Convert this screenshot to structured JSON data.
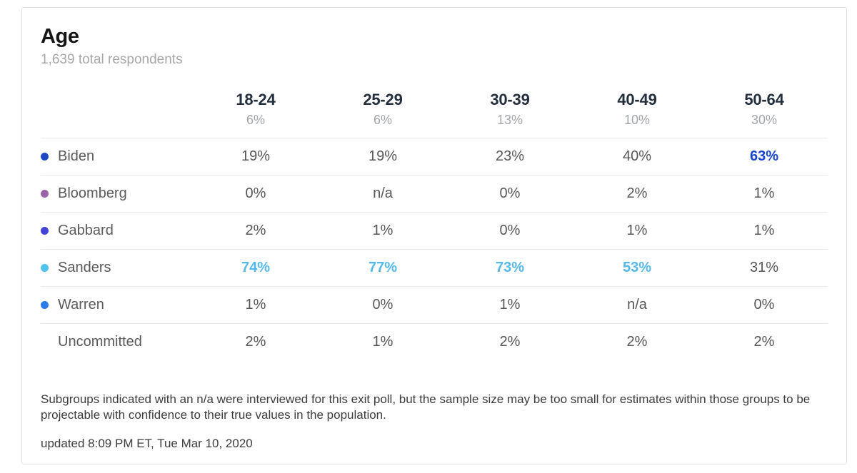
{
  "header": {
    "title": "Age",
    "subtitle": "1,639 total respondents"
  },
  "table": {
    "columns": [
      {
        "label": "18-24",
        "share": "6%"
      },
      {
        "label": "25-29",
        "share": "6%"
      },
      {
        "label": "30-39",
        "share": "13%"
      },
      {
        "label": "40-49",
        "share": "10%"
      },
      {
        "label": "50-64",
        "share": "30%"
      }
    ],
    "rows": [
      {
        "candidate": "Biden",
        "dot_color": "#1b49c6",
        "values": [
          {
            "text": "19%",
            "highlight": false
          },
          {
            "text": "19%",
            "highlight": false
          },
          {
            "text": "23%",
            "highlight": false
          },
          {
            "text": "40%",
            "highlight": false
          },
          {
            "text": "63%",
            "highlight": true
          }
        ]
      },
      {
        "candidate": "Bloomberg",
        "dot_color": "#9a62a8",
        "values": [
          {
            "text": "0%",
            "highlight": false
          },
          {
            "text": "n/a",
            "highlight": false
          },
          {
            "text": "0%",
            "highlight": false
          },
          {
            "text": "2%",
            "highlight": false
          },
          {
            "text": "1%",
            "highlight": false
          }
        ]
      },
      {
        "candidate": "Gabbard",
        "dot_color": "#4342d9",
        "values": [
          {
            "text": "2%",
            "highlight": false
          },
          {
            "text": "1%",
            "highlight": false
          },
          {
            "text": "0%",
            "highlight": false
          },
          {
            "text": "1%",
            "highlight": false
          },
          {
            "text": "1%",
            "highlight": false
          }
        ]
      },
      {
        "candidate": "Sanders",
        "dot_color": "#4fc2ee",
        "values": [
          {
            "text": "74%",
            "highlight": true
          },
          {
            "text": "77%",
            "highlight": true
          },
          {
            "text": "73%",
            "highlight": true
          },
          {
            "text": "53%",
            "highlight": true
          },
          {
            "text": "31%",
            "highlight": false
          }
        ]
      },
      {
        "candidate": "Warren",
        "dot_color": "#2b7be9",
        "values": [
          {
            "text": "1%",
            "highlight": false
          },
          {
            "text": "0%",
            "highlight": false
          },
          {
            "text": "1%",
            "highlight": false
          },
          {
            "text": "n/a",
            "highlight": false
          },
          {
            "text": "0%",
            "highlight": false
          }
        ]
      },
      {
        "candidate": "Uncommitted",
        "dot_color": null,
        "values": [
          {
            "text": "2%",
            "highlight": false
          },
          {
            "text": "1%",
            "highlight": false
          },
          {
            "text": "2%",
            "highlight": false
          },
          {
            "text": "2%",
            "highlight": false
          },
          {
            "text": "2%",
            "highlight": false
          }
        ]
      }
    ]
  },
  "footer": {
    "note": "Subgroups indicated with an n/a were interviewed for this exit poll, but the sample size may be too small for estimates within those groups to be projectable with confidence to their true values in the population.",
    "updated": "updated 8:09 PM ET, Tue Mar 10, 2020"
  },
  "colors": {
    "biden_highlight": "#1743cf",
    "sanders_highlight": "#54b9ea"
  },
  "chart_data": {
    "type": "table",
    "title": "Age",
    "subtitle": "1,639 total respondents",
    "categories": [
      "18-24",
      "25-29",
      "30-39",
      "40-49",
      "50-64"
    ],
    "category_shares_pct": [
      6,
      6,
      13,
      10,
      30
    ],
    "series": [
      {
        "name": "Biden",
        "values": [
          "19%",
          "19%",
          "23%",
          "40%",
          "63%"
        ]
      },
      {
        "name": "Bloomberg",
        "values": [
          "0%",
          "n/a",
          "0%",
          "2%",
          "1%"
        ]
      },
      {
        "name": "Gabbard",
        "values": [
          "2%",
          "1%",
          "0%",
          "1%",
          "1%"
        ]
      },
      {
        "name": "Sanders",
        "values": [
          "74%",
          "77%",
          "73%",
          "53%",
          "31%"
        ]
      },
      {
        "name": "Warren",
        "values": [
          "1%",
          "0%",
          "1%",
          "n/a",
          "0%"
        ]
      },
      {
        "name": "Uncommitted",
        "values": [
          "2%",
          "1%",
          "2%",
          "2%",
          "2%"
        ]
      }
    ]
  }
}
